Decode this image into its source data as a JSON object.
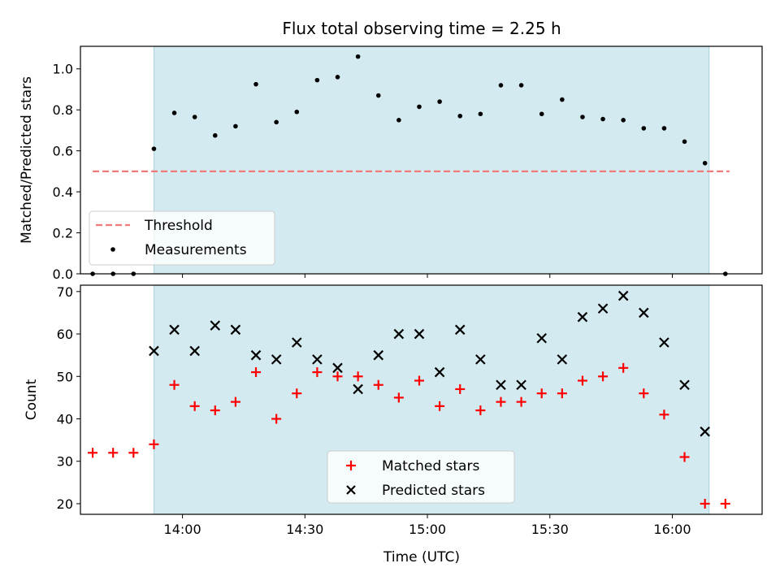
{
  "chart_data": [
    {
      "type": "scatter",
      "title": "Flux total observing time = 2.25 h",
      "xlabel": "",
      "ylabel": "Matched/Predicted stars",
      "ylim": [
        0,
        1.11
      ],
      "yticks": [
        "0.0",
        "0.2",
        "0.4",
        "0.6",
        "0.8",
        "1.0"
      ],
      "x_axis": "time (UTC), shared with lower panel",
      "shaded_interval": [
        "13:53",
        "16:09"
      ],
      "shade_color": "#d3eaf0",
      "threshold": {
        "name": "Threshold",
        "value": 0.5,
        "color": "#f07a7a",
        "x_range": [
          "13:38",
          "16:14"
        ]
      },
      "series": [
        {
          "name": "Measurements",
          "color": "#000000",
          "x": [
            "13:38",
            "13:43",
            "13:48",
            "13:53",
            "13:58",
            "14:03",
            "14:08",
            "14:13",
            "14:18",
            "14:23",
            "14:28",
            "14:33",
            "14:38",
            "14:43",
            "14:48",
            "14:53",
            "14:58",
            "15:03",
            "15:08",
            "15:13",
            "15:18",
            "15:23",
            "15:28",
            "15:33",
            "15:38",
            "15:43",
            "15:48",
            "15:53",
            "15:58",
            "16:03",
            "16:08",
            "16:13"
          ],
          "y": [
            0.0,
            0.0,
            0.0,
            0.61,
            0.785,
            0.765,
            0.675,
            0.72,
            0.925,
            0.74,
            0.79,
            0.945,
            0.96,
            1.06,
            0.87,
            0.75,
            0.815,
            0.84,
            0.77,
            0.78,
            0.92,
            0.92,
            0.78,
            0.85,
            0.765,
            0.755,
            0.75,
            0.71,
            0.71,
            0.645,
            0.54,
            0.0
          ]
        }
      ],
      "legend": [
        "Threshold",
        "Measurements"
      ],
      "legend_position": "lower-left"
    },
    {
      "type": "scatter",
      "title": "",
      "xlabel": "Time (UTC)",
      "ylabel": "Count",
      "ylim": [
        17.5,
        71.5
      ],
      "yticks": [
        "20",
        "30",
        "40",
        "50",
        "60",
        "70"
      ],
      "xticks": [
        "14:00",
        "14:30",
        "15:00",
        "15:30",
        "16:00"
      ],
      "xlim": [
        "13:35",
        "16:22"
      ],
      "shaded_interval": [
        "13:53",
        "16:09"
      ],
      "series": [
        {
          "name": "Matched stars",
          "marker": "plus",
          "color": "#ff0000",
          "x": [
            "13:38",
            "13:43",
            "13:48",
            "13:53",
            "13:58",
            "14:03",
            "14:08",
            "14:13",
            "14:18",
            "14:23",
            "14:28",
            "14:33",
            "14:38",
            "14:43",
            "14:48",
            "14:53",
            "14:58",
            "15:03",
            "15:08",
            "15:13",
            "15:18",
            "15:23",
            "15:28",
            "15:33",
            "15:38",
            "15:43",
            "15:48",
            "15:53",
            "15:58",
            "16:03",
            "16:08",
            "16:13"
          ],
          "y": [
            32,
            32,
            32,
            34,
            48,
            43,
            42,
            44,
            51,
            40,
            46,
            51,
            50,
            50,
            48,
            45,
            49,
            43,
            47,
            42,
            44,
            44,
            46,
            46,
            49,
            50,
            52,
            46,
            41,
            31,
            20,
            20
          ]
        },
        {
          "name": "Predicted stars",
          "marker": "x",
          "color": "#000000",
          "x": [
            "13:53",
            "13:58",
            "14:03",
            "14:08",
            "14:13",
            "14:18",
            "14:23",
            "14:28",
            "14:33",
            "14:38",
            "14:43",
            "14:48",
            "14:53",
            "14:58",
            "15:03",
            "15:08",
            "15:13",
            "15:18",
            "15:23",
            "15:28",
            "15:33",
            "15:38",
            "15:43",
            "15:48",
            "15:53",
            "15:58",
            "16:03",
            "16:08"
          ],
          "y": [
            56,
            61,
            56,
            62,
            61,
            55,
            54,
            58,
            54,
            52,
            47,
            55,
            60,
            60,
            51,
            61,
            54,
            48,
            48,
            59,
            54,
            64,
            66,
            69,
            65,
            58,
            48,
            37
          ]
        }
      ],
      "legend": [
        "Matched stars",
        "Predicted stars"
      ],
      "legend_position": "lower-center"
    }
  ]
}
